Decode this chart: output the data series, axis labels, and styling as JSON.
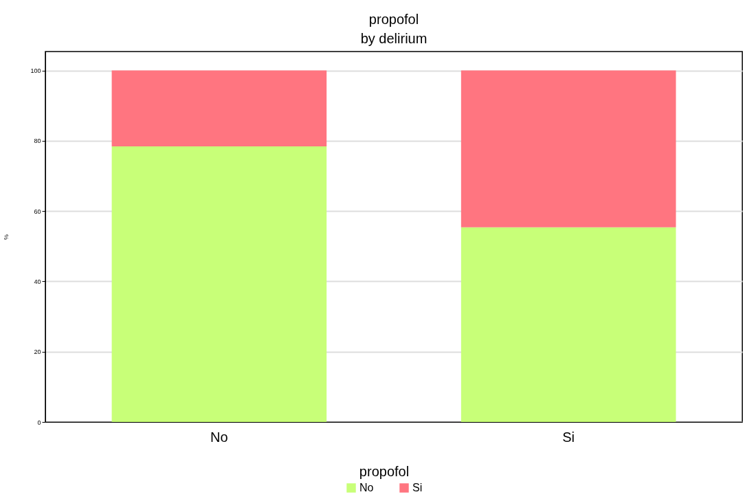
{
  "chart_data": {
    "type": "bar",
    "title": "propofol",
    "subtitle": "by delirium",
    "ylabel": "%",
    "legend_title": "propofol",
    "categories": [
      "No",
      "Si"
    ],
    "stacked": true,
    "series": [
      {
        "name": "No",
        "color": "#c8ff78",
        "values": [
          78.4,
          55.4
        ]
      },
      {
        "name": "Si",
        "color": "#ff7580",
        "values": [
          21.6,
          44.6
        ]
      }
    ],
    "ylim": [
      0,
      105.4
    ],
    "yticks": [
      0,
      20,
      40,
      60,
      80,
      100
    ],
    "grid": "y",
    "legend": "bottom"
  }
}
